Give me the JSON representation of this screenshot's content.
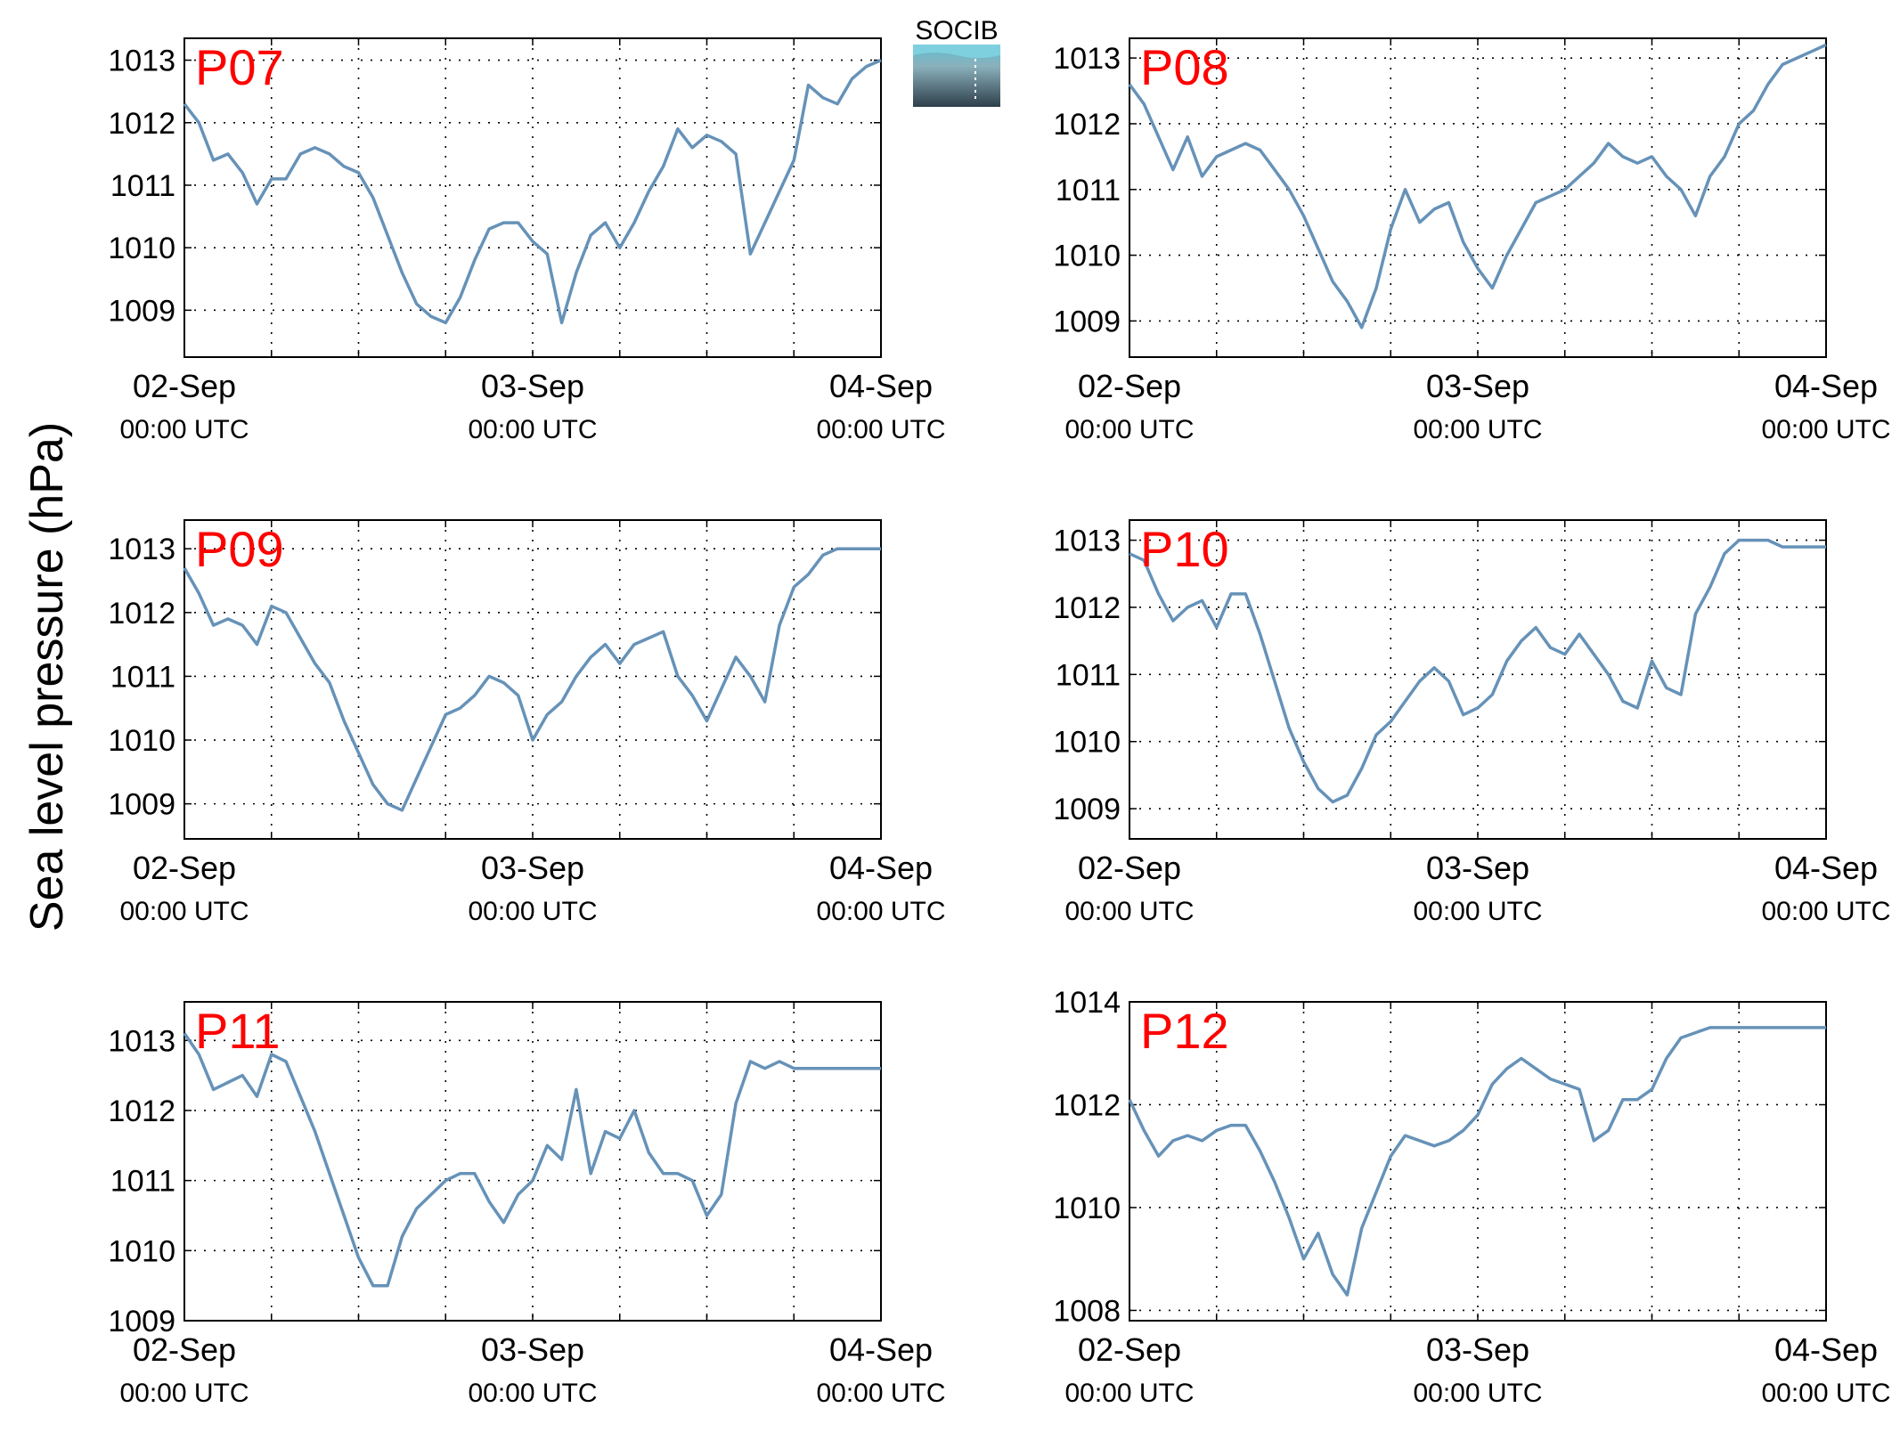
{
  "figure": {
    "ylabel": "Sea level pressure (hPa)",
    "logo_text": "SOCIB",
    "line_color": "#6692b8",
    "label_color": "#ff0000"
  },
  "chart_data": [
    {
      "type": "line",
      "title": "P07",
      "x_ticks": [
        {
          "label": "02-Sep",
          "sublabel": "00:00 UTC"
        },
        {
          "label": "03-Sep",
          "sublabel": "00:00 UTC"
        },
        {
          "label": "04-Sep",
          "sublabel": "00:00 UTC"
        }
      ],
      "xlim": [
        "2015-09-02T00:00",
        "2015-09-04T00:00"
      ],
      "ylim": [
        1008.25,
        1013.35
      ],
      "yticks": [
        1009,
        1010,
        1011,
        1012,
        1013
      ],
      "grid": true,
      "series": [
        {
          "x": [
            "2015-09-02T00:00",
            "2015-09-02T01:00",
            "2015-09-02T02:00",
            "2015-09-02T03:00",
            "2015-09-02T04:00",
            "2015-09-02T05:00",
            "2015-09-02T06:00",
            "2015-09-02T07:00",
            "2015-09-02T08:00",
            "2015-09-02T09:00",
            "2015-09-02T10:00",
            "2015-09-02T11:00",
            "2015-09-02T12:00",
            "2015-09-02T13:00",
            "2015-09-02T14:00",
            "2015-09-02T15:00",
            "2015-09-02T16:00",
            "2015-09-02T17:00",
            "2015-09-02T18:00",
            "2015-09-02T19:00",
            "2015-09-02T20:00",
            "2015-09-02T21:00",
            "2015-09-02T22:00",
            "2015-09-02T23:00",
            "2015-09-03T00:00",
            "2015-09-03T01:00",
            "2015-09-03T02:00",
            "2015-09-03T03:00",
            "2015-09-03T04:00",
            "2015-09-03T05:00",
            "2015-09-03T06:00",
            "2015-09-03T07:00",
            "2015-09-03T08:00",
            "2015-09-03T09:00",
            "2015-09-03T10:00",
            "2015-09-03T11:00",
            "2015-09-03T12:00",
            "2015-09-03T13:00",
            "2015-09-03T14:00",
            "2015-09-03T15:00",
            "2015-09-03T16:00",
            "2015-09-03T17:00",
            "2015-09-03T18:00",
            "2015-09-03T19:00",
            "2015-09-03T20:00",
            "2015-09-03T21:00",
            "2015-09-03T22:00",
            "2015-09-03T23:00",
            "2015-09-04T00:00"
          ],
          "y": [
            1012.3,
            1012.0,
            1011.4,
            1011.5,
            1011.2,
            1010.7,
            1011.1,
            1011.1,
            1011.5,
            1011.6,
            1011.5,
            1011.3,
            1011.2,
            1010.8,
            1010.2,
            1009.6,
            1009.1,
            1008.9,
            1008.8,
            1009.2,
            1009.8,
            1010.3,
            1010.4,
            1010.4,
            1010.1,
            1009.9,
            1008.8,
            1009.6,
            1010.2,
            1010.4,
            1010.0,
            1010.4,
            1010.9,
            1011.3,
            1011.9,
            1011.6,
            1011.8,
            1011.7,
            1011.5,
            1009.9,
            1010.4,
            1010.9,
            1011.4,
            1012.6,
            1012.4,
            1012.3,
            1012.7,
            1012.9,
            1013.0
          ]
        }
      ]
    },
    {
      "type": "line",
      "title": "P08",
      "x_ticks": [
        {
          "label": "02-Sep",
          "sublabel": "00:00 UTC"
        },
        {
          "label": "03-Sep",
          "sublabel": "00:00 UTC"
        },
        {
          "label": "04-Sep",
          "sublabel": "00:00 UTC"
        }
      ],
      "xlim": [
        "2015-09-02T00:00",
        "2015-09-04T00:00"
      ],
      "ylim": [
        1008.45,
        1013.3
      ],
      "yticks": [
        1009,
        1010,
        1011,
        1012,
        1013
      ],
      "grid": true,
      "series": [
        {
          "x": [
            "2015-09-02T00:00",
            "2015-09-02T01:00",
            "2015-09-02T02:00",
            "2015-09-02T03:00",
            "2015-09-02T04:00",
            "2015-09-02T05:00",
            "2015-09-02T06:00",
            "2015-09-02T07:00",
            "2015-09-02T08:00",
            "2015-09-02T09:00",
            "2015-09-02T10:00",
            "2015-09-02T11:00",
            "2015-09-02T12:00",
            "2015-09-02T13:00",
            "2015-09-02T14:00",
            "2015-09-02T15:00",
            "2015-09-02T16:00",
            "2015-09-02T17:00",
            "2015-09-02T18:00",
            "2015-09-02T19:00",
            "2015-09-02T20:00",
            "2015-09-02T21:00",
            "2015-09-02T22:00",
            "2015-09-02T23:00",
            "2015-09-03T00:00",
            "2015-09-03T01:00",
            "2015-09-03T02:00",
            "2015-09-03T03:00",
            "2015-09-03T04:00",
            "2015-09-03T05:00",
            "2015-09-03T06:00",
            "2015-09-03T07:00",
            "2015-09-03T08:00",
            "2015-09-03T09:00",
            "2015-09-03T10:00",
            "2015-09-03T11:00",
            "2015-09-03T12:00",
            "2015-09-03T13:00",
            "2015-09-03T14:00",
            "2015-09-03T15:00",
            "2015-09-03T16:00",
            "2015-09-03T17:00",
            "2015-09-03T18:00",
            "2015-09-03T19:00",
            "2015-09-03T20:00",
            "2015-09-03T21:00",
            "2015-09-03T22:00",
            "2015-09-03T23:00",
            "2015-09-04T00:00"
          ],
          "y": [
            1012.6,
            1012.3,
            1011.8,
            1011.3,
            1011.8,
            1011.2,
            1011.5,
            1011.6,
            1011.7,
            1011.6,
            1011.3,
            1011.0,
            1010.6,
            1010.1,
            1009.6,
            1009.3,
            1008.9,
            1009.5,
            1010.4,
            1011.0,
            1010.5,
            1010.7,
            1010.8,
            1010.2,
            1009.8,
            1009.5,
            1010.0,
            1010.4,
            1010.8,
            1010.9,
            1011.0,
            1011.2,
            1011.4,
            1011.7,
            1011.5,
            1011.4,
            1011.5,
            1011.2,
            1011.0,
            1010.6,
            1011.2,
            1011.5,
            1012.0,
            1012.2,
            1012.6,
            1012.9,
            1013.0,
            1013.1,
            1013.2
          ]
        }
      ]
    },
    {
      "type": "line",
      "title": "P09",
      "x_ticks": [
        {
          "label": "02-Sep",
          "sublabel": "00:00 UTC"
        },
        {
          "label": "03-Sep",
          "sublabel": "00:00 UTC"
        },
        {
          "label": "04-Sep",
          "sublabel": "00:00 UTC"
        }
      ],
      "xlim": [
        "2015-09-02T00:00",
        "2015-09-04T00:00"
      ],
      "ylim": [
        1008.45,
        1013.45
      ],
      "yticks": [
        1009,
        1010,
        1011,
        1012,
        1013
      ],
      "grid": true,
      "series": [
        {
          "x": [
            "2015-09-02T00:00",
            "2015-09-02T01:00",
            "2015-09-02T02:00",
            "2015-09-02T03:00",
            "2015-09-02T04:00",
            "2015-09-02T05:00",
            "2015-09-02T06:00",
            "2015-09-02T07:00",
            "2015-09-02T08:00",
            "2015-09-02T09:00",
            "2015-09-02T10:00",
            "2015-09-02T11:00",
            "2015-09-02T12:00",
            "2015-09-02T13:00",
            "2015-09-02T14:00",
            "2015-09-02T15:00",
            "2015-09-02T16:00",
            "2015-09-02T17:00",
            "2015-09-02T18:00",
            "2015-09-02T19:00",
            "2015-09-02T20:00",
            "2015-09-02T21:00",
            "2015-09-02T22:00",
            "2015-09-02T23:00",
            "2015-09-03T00:00",
            "2015-09-03T01:00",
            "2015-09-03T02:00",
            "2015-09-03T03:00",
            "2015-09-03T04:00",
            "2015-09-03T05:00",
            "2015-09-03T06:00",
            "2015-09-03T07:00",
            "2015-09-03T08:00",
            "2015-09-03T09:00",
            "2015-09-03T10:00",
            "2015-09-03T11:00",
            "2015-09-03T12:00",
            "2015-09-03T13:00",
            "2015-09-03T14:00",
            "2015-09-03T15:00",
            "2015-09-03T16:00",
            "2015-09-03T17:00",
            "2015-09-03T18:00",
            "2015-09-03T19:00",
            "2015-09-03T20:00",
            "2015-09-03T21:00",
            "2015-09-03T22:00",
            "2015-09-03T23:00",
            "2015-09-04T00:00"
          ],
          "y": [
            1012.7,
            1012.3,
            1011.8,
            1011.9,
            1011.8,
            1011.5,
            1012.1,
            1012.0,
            1011.6,
            1011.2,
            1010.9,
            1010.3,
            1009.8,
            1009.3,
            1009.0,
            1008.9,
            1009.4,
            1009.9,
            1010.4,
            1010.5,
            1010.7,
            1011.0,
            1010.9,
            1010.7,
            1010.0,
            1010.4,
            1010.6,
            1011.0,
            1011.3,
            1011.5,
            1011.2,
            1011.5,
            1011.6,
            1011.7,
            1011.0,
            1010.7,
            1010.3,
            1010.8,
            1011.3,
            1011.0,
            1010.6,
            1011.8,
            1012.4,
            1012.6,
            1012.9,
            1013.0,
            1013.0,
            1013.0,
            1013.0
          ]
        }
      ]
    },
    {
      "type": "line",
      "title": "P10",
      "x_ticks": [
        {
          "label": "02-Sep",
          "sublabel": "00:00 UTC"
        },
        {
          "label": "03-Sep",
          "sublabel": "00:00 UTC"
        },
        {
          "label": "04-Sep",
          "sublabel": "00:00 UTC"
        }
      ],
      "xlim": [
        "2015-09-02T00:00",
        "2015-09-04T00:00"
      ],
      "ylim": [
        1008.55,
        1013.3
      ],
      "yticks": [
        1009,
        1010,
        1011,
        1012,
        1013
      ],
      "grid": true,
      "series": [
        {
          "x": [
            "2015-09-02T00:00",
            "2015-09-02T01:00",
            "2015-09-02T02:00",
            "2015-09-02T03:00",
            "2015-09-02T04:00",
            "2015-09-02T05:00",
            "2015-09-02T06:00",
            "2015-09-02T07:00",
            "2015-09-02T08:00",
            "2015-09-02T09:00",
            "2015-09-02T10:00",
            "2015-09-02T11:00",
            "2015-09-02T12:00",
            "2015-09-02T13:00",
            "2015-09-02T14:00",
            "2015-09-02T15:00",
            "2015-09-02T16:00",
            "2015-09-02T17:00",
            "2015-09-02T18:00",
            "2015-09-02T19:00",
            "2015-09-02T20:00",
            "2015-09-02T21:00",
            "2015-09-02T22:00",
            "2015-09-02T23:00",
            "2015-09-03T00:00",
            "2015-09-03T01:00",
            "2015-09-03T02:00",
            "2015-09-03T03:00",
            "2015-09-03T04:00",
            "2015-09-03T05:00",
            "2015-09-03T06:00",
            "2015-09-03T07:00",
            "2015-09-03T08:00",
            "2015-09-03T09:00",
            "2015-09-03T10:00",
            "2015-09-03T11:00",
            "2015-09-03T12:00",
            "2015-09-03T13:00",
            "2015-09-03T14:00",
            "2015-09-03T15:00",
            "2015-09-03T16:00",
            "2015-09-03T17:00",
            "2015-09-03T18:00",
            "2015-09-03T19:00",
            "2015-09-03T20:00",
            "2015-09-03T21:00",
            "2015-09-03T22:00",
            "2015-09-03T23:00",
            "2015-09-04T00:00"
          ],
          "y": [
            1012.8,
            1012.7,
            1012.2,
            1011.8,
            1012.0,
            1012.1,
            1011.7,
            1012.2,
            1012.2,
            1011.6,
            1010.9,
            1010.2,
            1009.7,
            1009.3,
            1009.1,
            1009.2,
            1009.6,
            1010.1,
            1010.3,
            1010.6,
            1010.9,
            1011.1,
            1010.9,
            1010.4,
            1010.5,
            1010.7,
            1011.2,
            1011.5,
            1011.7,
            1011.4,
            1011.3,
            1011.6,
            1011.3,
            1011.0,
            1010.6,
            1010.5,
            1011.2,
            1010.8,
            1010.7,
            1011.9,
            1012.3,
            1012.8,
            1013.0,
            1013.0,
            1013.0,
            1012.9,
            1012.9,
            1012.9,
            1012.9
          ]
        }
      ]
    },
    {
      "type": "line",
      "title": "P11",
      "x_ticks": [
        {
          "label": "02-Sep",
          "sublabel": "00:00 UTC"
        },
        {
          "label": "03-Sep",
          "sublabel": "00:00 UTC"
        },
        {
          "label": "04-Sep",
          "sublabel": "00:00 UTC"
        }
      ],
      "xlim": [
        "2015-09-02T00:00",
        "2015-09-04T00:00"
      ],
      "ylim": [
        1009.0,
        1013.55
      ],
      "yticks": [
        1009,
        1010,
        1011,
        1012,
        1013
      ],
      "grid": true,
      "series": [
        {
          "x": [
            "2015-09-02T00:00",
            "2015-09-02T01:00",
            "2015-09-02T02:00",
            "2015-09-02T03:00",
            "2015-09-02T04:00",
            "2015-09-02T05:00",
            "2015-09-02T06:00",
            "2015-09-02T07:00",
            "2015-09-02T08:00",
            "2015-09-02T09:00",
            "2015-09-02T10:00",
            "2015-09-02T11:00",
            "2015-09-02T12:00",
            "2015-09-02T13:00",
            "2015-09-02T14:00",
            "2015-09-02T15:00",
            "2015-09-02T16:00",
            "2015-09-02T17:00",
            "2015-09-02T18:00",
            "2015-09-02T19:00",
            "2015-09-02T20:00",
            "2015-09-02T21:00",
            "2015-09-02T22:00",
            "2015-09-02T23:00",
            "2015-09-03T00:00",
            "2015-09-03T01:00",
            "2015-09-03T02:00",
            "2015-09-03T03:00",
            "2015-09-03T04:00",
            "2015-09-03T05:00",
            "2015-09-03T06:00",
            "2015-09-03T07:00",
            "2015-09-03T08:00",
            "2015-09-03T09:00",
            "2015-09-03T10:00",
            "2015-09-03T11:00",
            "2015-09-03T12:00",
            "2015-09-03T13:00",
            "2015-09-03T14:00",
            "2015-09-03T15:00",
            "2015-09-03T16:00",
            "2015-09-03T17:00",
            "2015-09-03T18:00",
            "2015-09-03T19:00",
            "2015-09-03T20:00",
            "2015-09-03T21:00",
            "2015-09-03T22:00",
            "2015-09-03T23:00",
            "2015-09-04T00:00"
          ],
          "y": [
            1013.1,
            1012.8,
            1012.3,
            1012.4,
            1012.5,
            1012.2,
            1012.8,
            1012.7,
            1012.2,
            1011.7,
            1011.1,
            1010.5,
            1009.9,
            1009.5,
            1009.5,
            1010.2,
            1010.6,
            1010.8,
            1011.0,
            1011.1,
            1011.1,
            1010.7,
            1010.4,
            1010.8,
            1011.0,
            1011.5,
            1011.3,
            1012.3,
            1011.1,
            1011.7,
            1011.6,
            1012.0,
            1011.4,
            1011.1,
            1011.1,
            1011.0,
            1010.5,
            1010.8,
            1012.1,
            1012.7,
            1012.6,
            1012.7,
            1012.6,
            1012.6,
            1012.6,
            1012.6,
            1012.6,
            1012.6,
            1012.6
          ]
        }
      ]
    },
    {
      "type": "line",
      "title": "P12",
      "x_ticks": [
        {
          "label": "02-Sep",
          "sublabel": "00:00 UTC"
        },
        {
          "label": "03-Sep",
          "sublabel": "00:00 UTC"
        },
        {
          "label": "04-Sep",
          "sublabel": "00:00 UTC"
        }
      ],
      "xlim": [
        "2015-09-02T00:00",
        "2015-09-04T00:00"
      ],
      "ylim": [
        1007.8,
        1014.0
      ],
      "yticks": [
        1008,
        1010,
        1012,
        1014
      ],
      "grid": true,
      "series": [
        {
          "x": [
            "2015-09-02T00:00",
            "2015-09-02T01:00",
            "2015-09-02T02:00",
            "2015-09-02T03:00",
            "2015-09-02T04:00",
            "2015-09-02T05:00",
            "2015-09-02T06:00",
            "2015-09-02T07:00",
            "2015-09-02T08:00",
            "2015-09-02T09:00",
            "2015-09-02T10:00",
            "2015-09-02T11:00",
            "2015-09-02T12:00",
            "2015-09-02T13:00",
            "2015-09-02T14:00",
            "2015-09-02T15:00",
            "2015-09-02T16:00",
            "2015-09-02T17:00",
            "2015-09-02T18:00",
            "2015-09-02T19:00",
            "2015-09-02T20:00",
            "2015-09-02T21:00",
            "2015-09-02T22:00",
            "2015-09-02T23:00",
            "2015-09-03T00:00",
            "2015-09-03T01:00",
            "2015-09-03T02:00",
            "2015-09-03T03:00",
            "2015-09-03T04:00",
            "2015-09-03T05:00",
            "2015-09-03T06:00",
            "2015-09-03T07:00",
            "2015-09-03T08:00",
            "2015-09-03T09:00",
            "2015-09-03T10:00",
            "2015-09-03T11:00",
            "2015-09-03T12:00",
            "2015-09-03T13:00",
            "2015-09-03T14:00",
            "2015-09-03T15:00",
            "2015-09-03T16:00",
            "2015-09-03T17:00",
            "2015-09-03T18:00",
            "2015-09-03T19:00",
            "2015-09-03T20:00",
            "2015-09-03T21:00",
            "2015-09-03T22:00",
            "2015-09-03T23:00",
            "2015-09-04T00:00"
          ],
          "y": [
            1012.1,
            1011.5,
            1011.0,
            1011.3,
            1011.4,
            1011.3,
            1011.5,
            1011.6,
            1011.6,
            1011.1,
            1010.5,
            1009.8,
            1009.0,
            1009.5,
            1008.7,
            1008.3,
            1009.6,
            1010.3,
            1011.0,
            1011.4,
            1011.3,
            1011.2,
            1011.3,
            1011.5,
            1011.8,
            1012.4,
            1012.7,
            1012.9,
            1012.7,
            1012.5,
            1012.4,
            1012.3,
            1011.3,
            1011.5,
            1012.1,
            1012.1,
            1012.3,
            1012.9,
            1013.3,
            1013.4,
            1013.5,
            1013.5,
            1013.5,
            1013.5,
            1013.5,
            1013.5,
            1013.5,
            1013.5,
            1013.5
          ]
        }
      ]
    }
  ]
}
